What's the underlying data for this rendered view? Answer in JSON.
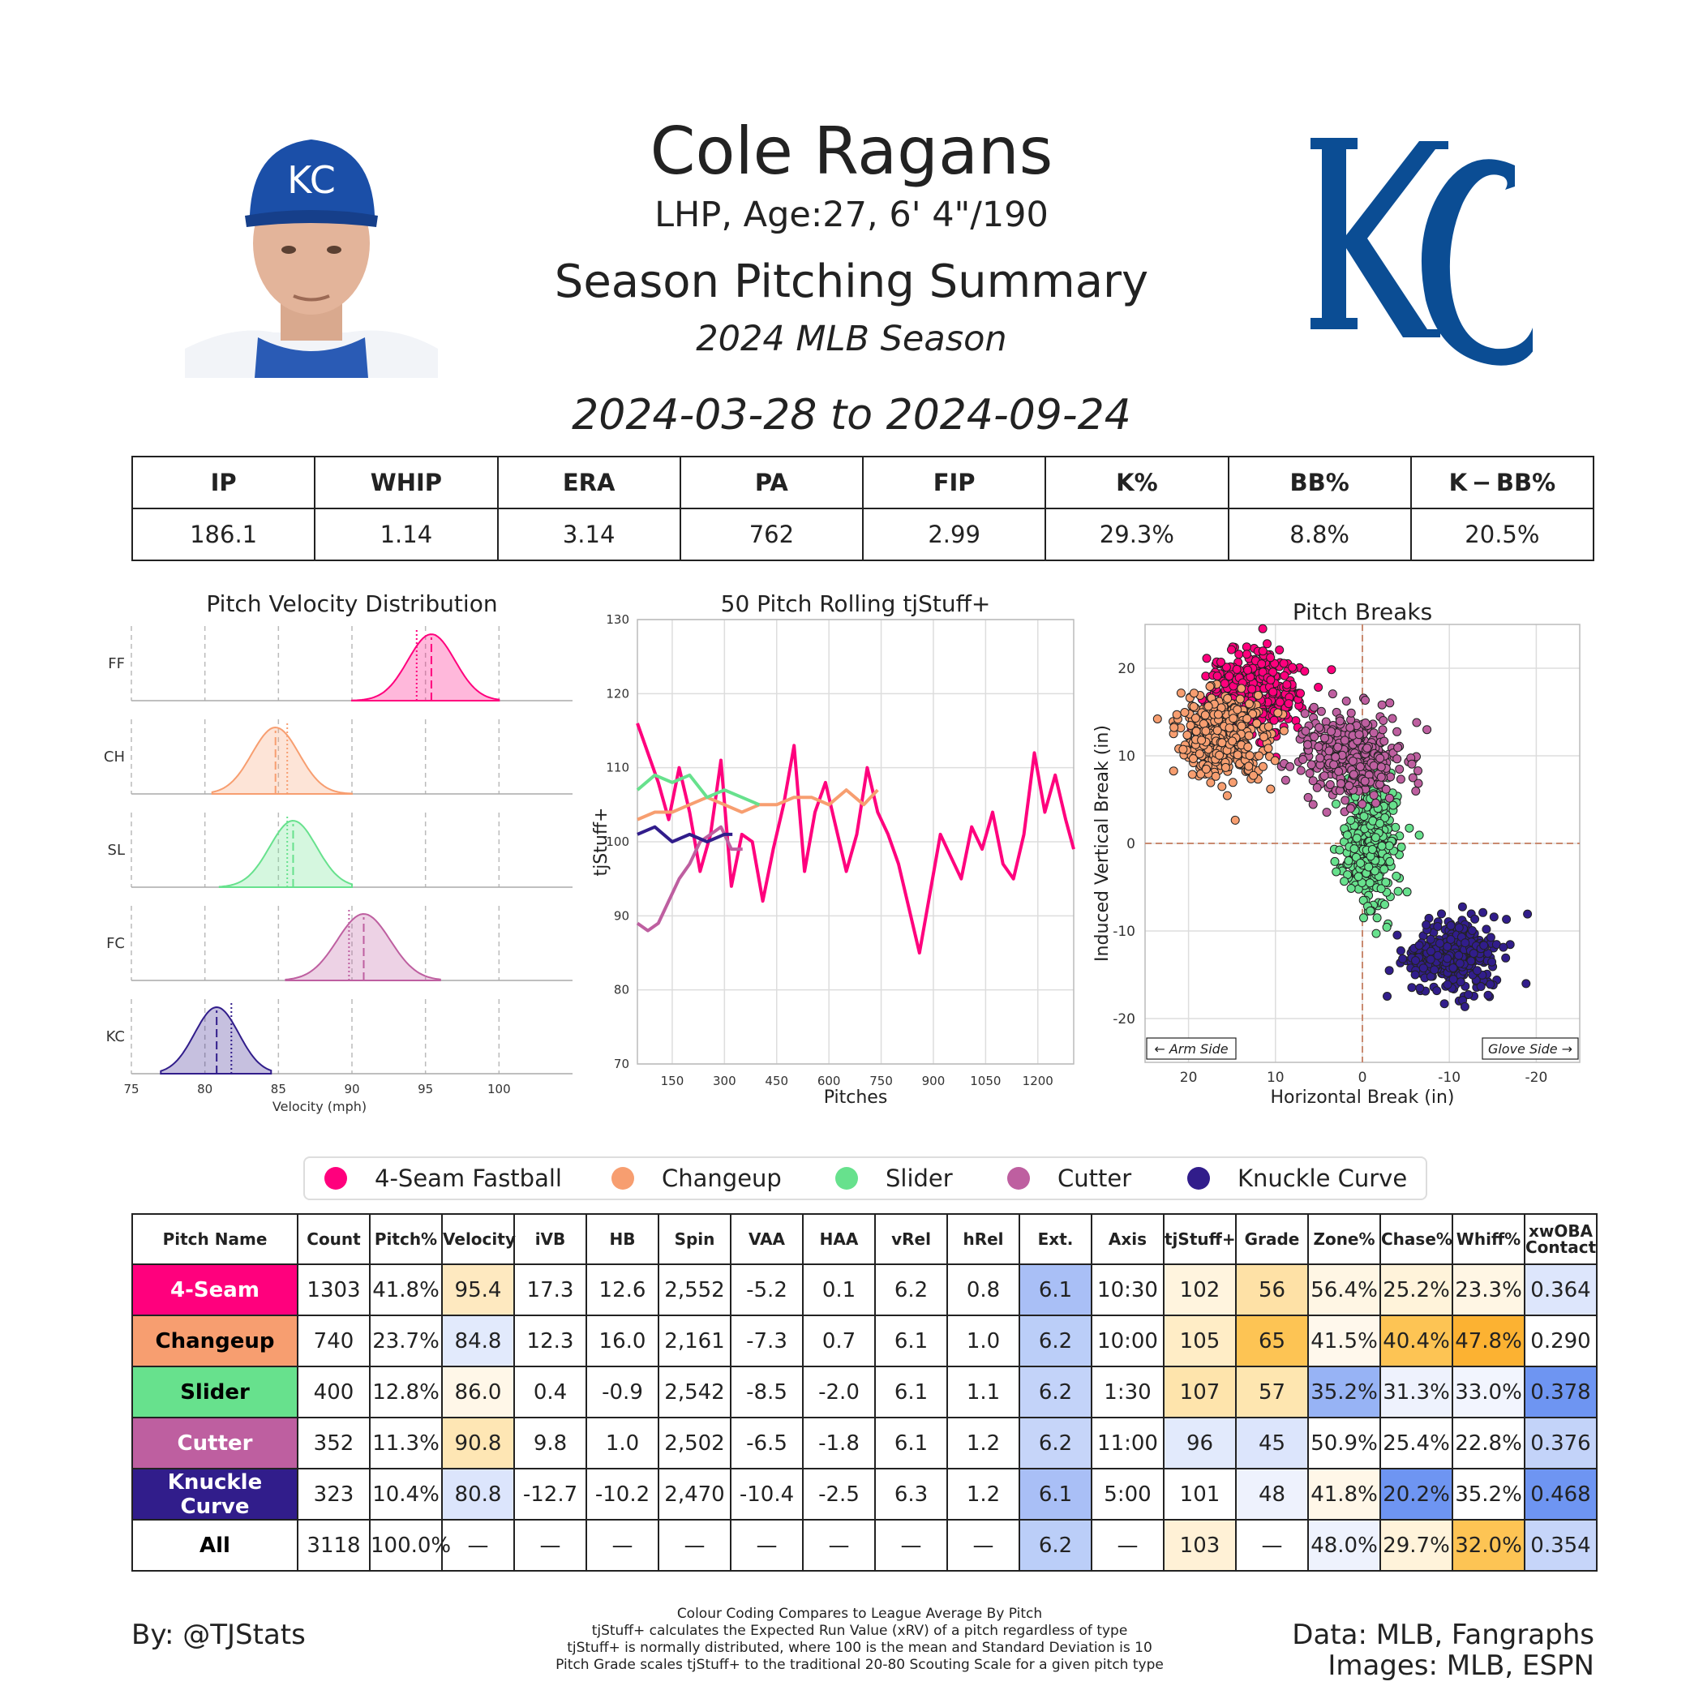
{
  "header": {
    "name": "Cole Ragans",
    "bio": "LHP, Age:27, 6' 4\"/190",
    "title": "Season Pitching Summary",
    "season": "2024 MLB Season",
    "dates": "2024-03-28 to 2024-09-24"
  },
  "stats": {
    "headers": [
      "IP",
      "WHIP",
      "ERA",
      "PA",
      "FIP",
      "K%",
      "BB%",
      "K − BB%"
    ],
    "values": [
      "186.1",
      "1.14",
      "3.14",
      "762",
      "2.99",
      "29.3%",
      "8.8%",
      "20.5%"
    ]
  },
  "legend": [
    {
      "label": "4-Seam Fastball",
      "color": "#FF007D"
    },
    {
      "label": "Changeup",
      "color": "#F79E70"
    },
    {
      "label": "Slider",
      "color": "#67E18D"
    },
    {
      "label": "Cutter",
      "color": "#BE5FA0"
    },
    {
      "label": "Knuckle Curve",
      "color": "#311D8B"
    }
  ],
  "table": {
    "headers": [
      "Pitch Name",
      "Count",
      "Pitch%",
      "Velocity",
      "iVB",
      "HB",
      "Spin",
      "VAA",
      "HAA",
      "vRel",
      "hRel",
      "Ext.",
      "Axis",
      "tjStuff+",
      "Grade",
      "Zone%",
      "Chase%",
      "Whiff%",
      "xwOBA Contact"
    ],
    "rows": [
      {
        "name": "4-Seam",
        "name_bg": "#FF007D",
        "name_color": "#ffffff",
        "cells": [
          "1303",
          "41.8%",
          "95.4",
          "17.3",
          "12.6",
          "2,552",
          "-5.2",
          "0.1",
          "6.2",
          "0.8",
          "6.1",
          "10:30",
          "102",
          "56",
          "56.4%",
          "25.2%",
          "23.3%",
          "0.364"
        ],
        "bg": [
          "",
          "",
          "#FEE9C0",
          "",
          "",
          "",
          "",
          "",
          "",
          "",
          "#A9BFF6",
          "",
          "#FFF4DE",
          "#FEE1A6",
          "#FFF6E4",
          "#FFF3DA",
          "#FFF6E4",
          "#DDE6FC"
        ]
      },
      {
        "name": "Changeup",
        "name_bg": "#F79E70",
        "name_color": "#000000",
        "cells": [
          "740",
          "23.7%",
          "84.8",
          "12.3",
          "16.0",
          "2,161",
          "-7.3",
          "0.7",
          "6.1",
          "1.0",
          "6.2",
          "10:00",
          "105",
          "65",
          "41.5%",
          "40.4%",
          "47.8%",
          "0.290"
        ],
        "bg": [
          "",
          "",
          "#E2EAFC",
          "",
          "",
          "",
          "",
          "",
          "",
          "",
          "#BBCEF8",
          "",
          "#FFEDC6",
          "#FDC454",
          "#FFF8EC",
          "#FDC454",
          "#FCB232",
          ""
        ]
      },
      {
        "name": "Slider",
        "name_bg": "#67E18D",
        "name_color": "#000000",
        "cells": [
          "400",
          "12.8%",
          "86.0",
          "0.4",
          "-0.9",
          "2,542",
          "-8.5",
          "-2.0",
          "6.1",
          "1.1",
          "6.2",
          "1:30",
          "107",
          "57",
          "35.2%",
          "31.3%",
          "33.0%",
          "0.378"
        ],
        "bg": [
          "",
          "",
          "#FFF7E8",
          "",
          "",
          "",
          "",
          "",
          "",
          "",
          "#C3D3F9",
          "",
          "#FEE4AC",
          "#FEE6B0",
          "#97B3F5",
          "#EEF2FD",
          "#F2F5FE",
          "#6E95F2"
        ]
      },
      {
        "name": "Cutter",
        "name_bg": "#BE5FA0",
        "name_color": "#ffffff",
        "cells": [
          "352",
          "11.3%",
          "90.8",
          "9.8",
          "1.0",
          "2,502",
          "-6.5",
          "-1.8",
          "6.1",
          "1.2",
          "6.2",
          "11:00",
          "96",
          "45",
          "50.9%",
          "25.4%",
          "22.8%",
          "0.376"
        ],
        "bg": [
          "",
          "",
          "#FEE6B4",
          "",
          "",
          "",
          "",
          "",
          "",
          "",
          "#C6D5F9",
          "",
          "#E2EAFC",
          "#DCE5FC",
          "",
          "",
          "",
          "#C3D3F9"
        ]
      },
      {
        "name": "Knuckle Curve",
        "name_bg": "#311D8B",
        "name_color": "#ffffff",
        "cells": [
          "323",
          "10.4%",
          "80.8",
          "-12.7",
          "-10.2",
          "2,470",
          "-10.4",
          "-2.5",
          "6.3",
          "1.2",
          "6.1",
          "5:00",
          "101",
          "48",
          "41.8%",
          "20.2%",
          "35.2%",
          "0.468"
        ],
        "bg": [
          "",
          "",
          "#DCE5FC",
          "",
          "",
          "",
          "",
          "",
          "",
          "",
          "#A9BFF6",
          "",
          "",
          "#EEF2FD",
          "#FFF7E8",
          "#6E95F2",
          "",
          "#6E95F2"
        ]
      },
      {
        "name": "All",
        "name_bg": "#ffffff",
        "name_color": "#000000",
        "cells": [
          "3118",
          "100.0%",
          "—",
          "—",
          "—",
          "—",
          "—",
          "—",
          "—",
          "—",
          "6.2",
          "—",
          "103",
          "—",
          "48.0%",
          "29.7%",
          "32.0%",
          "0.354"
        ],
        "bg": [
          "",
          "",
          "",
          "",
          "",
          "",
          "",
          "",
          "",
          "",
          "#BBCEF8",
          "",
          "#FFF1D6",
          "",
          "#EEF2FD",
          "#FFF3DA",
          "#FDC454",
          "#C6D5F9"
        ]
      }
    ]
  },
  "footer": {
    "by": "By: @TJStats",
    "data_credit": "Data: MLB, Fangraphs",
    "images_credit": "Images: MLB, ESPN",
    "notes": [
      "Colour Coding Compares to League Average By Pitch",
      "tjStuff+ calculates the Expected Run Value (xRV) of a pitch regardless of type",
      "tjStuff+ is normally distributed, where 100 is the mean and Standard Deviation is 10",
      "Pitch Grade scales tjStuff+ to the traditional 20-80 Scouting Scale for a given pitch type"
    ]
  },
  "chart_data": [
    {
      "type": "area",
      "title": "Pitch Velocity Distribution",
      "xlabel": "Velocity (mph)",
      "xlim": [
        75,
        105
      ],
      "xticks": [
        75,
        80,
        85,
        90,
        95,
        100
      ],
      "series": [
        {
          "name": "FF",
          "color": "#FF007D",
          "mean": 95.4,
          "sd": 1.6,
          "range": [
            90,
            100
          ],
          "league_avg": 94.4
        },
        {
          "name": "CH",
          "color": "#F79E70",
          "mean": 84.8,
          "sd": 1.6,
          "range": [
            80.5,
            90
          ],
          "league_avg": 85.6
        },
        {
          "name": "SL",
          "color": "#67E18D",
          "mean": 86.0,
          "sd": 1.6,
          "range": [
            81,
            90
          ],
          "league_avg": 85.6
        },
        {
          "name": "FC",
          "color": "#BE5FA0",
          "mean": 90.8,
          "sd": 1.8,
          "range": [
            85.5,
            96
          ],
          "league_avg": 89.8
        },
        {
          "name": "KC",
          "color": "#311D8B",
          "mean": 80.8,
          "sd": 1.5,
          "range": [
            77,
            84.5
          ],
          "league_avg": 81.8
        }
      ]
    },
    {
      "type": "line",
      "title": "50 Pitch Rolling tjStuff+",
      "xlabel": "Pitches",
      "ylabel": "tjStuff+",
      "xlim": [
        50,
        1303
      ],
      "ylim": [
        70,
        130
      ],
      "xticks": [
        150,
        300,
        450,
        600,
        750,
        900,
        1050,
        1200
      ],
      "yticks": [
        70,
        80,
        90,
        100,
        110,
        120,
        130
      ],
      "series": [
        {
          "name": "4-Seam Fastball",
          "color": "#FF007D",
          "x": [
            50,
            80,
            110,
            140,
            170,
            200,
            230,
            260,
            290,
            320,
            350,
            380,
            410,
            440,
            470,
            500,
            530,
            560,
            590,
            620,
            650,
            680,
            710,
            740,
            770,
            800,
            830,
            860,
            890,
            920,
            950,
            980,
            1010,
            1040,
            1070,
            1100,
            1130,
            1160,
            1190,
            1220,
            1250,
            1280,
            1303
          ],
          "y": [
            116,
            112,
            108,
            103,
            110,
            104,
            96,
            101,
            111,
            94,
            101,
            100,
            92,
            99,
            105,
            113,
            96,
            104,
            108,
            102,
            96,
            101,
            110,
            104,
            101,
            97,
            91,
            85,
            93,
            101,
            98,
            95,
            102,
            99,
            104,
            97,
            95,
            101,
            112,
            104,
            109,
            103,
            99
          ]
        },
        {
          "name": "Changeup",
          "color": "#F79E70",
          "x": [
            50,
            100,
            150,
            200,
            250,
            300,
            350,
            400,
            450,
            500,
            550,
            600,
            650,
            700,
            740
          ],
          "y": [
            103,
            104,
            104,
            105,
            106,
            105,
            104,
            105,
            105,
            106,
            106,
            105,
            107,
            105,
            107
          ]
        },
        {
          "name": "Slider",
          "color": "#67E18D",
          "x": [
            50,
            100,
            150,
            200,
            250,
            300,
            350,
            400
          ],
          "y": [
            107,
            109,
            108,
            109,
            106,
            107,
            106,
            105
          ]
        },
        {
          "name": "Cutter",
          "color": "#BE5FA0",
          "x": [
            50,
            80,
            110,
            140,
            170,
            200,
            230,
            260,
            290,
            320,
            352
          ],
          "y": [
            89,
            88,
            89,
            92,
            95,
            97,
            100,
            101,
            102,
            99,
            99
          ]
        },
        {
          "name": "Knuckle Curve",
          "color": "#311D8B",
          "x": [
            50,
            100,
            150,
            200,
            250,
            300,
            323
          ],
          "y": [
            101,
            102,
            100,
            101,
            100,
            101,
            101
          ]
        }
      ]
    },
    {
      "type": "scatter",
      "title": "Pitch Breaks",
      "xlabel": "Horizontal Break (in)",
      "ylabel": "Induced Vertical Break (in)",
      "xlim": [
        25,
        -25
      ],
      "ylim": [
        -25,
        25
      ],
      "xticks": [
        20,
        10,
        0,
        -10,
        -20
      ],
      "yticks": [
        -20,
        -10,
        0,
        10,
        20
      ],
      "annotations": [
        "← Arm Side",
        "Glove Side →"
      ],
      "series": [
        {
          "name": "4-Seam Fastball",
          "color": "#FF007D",
          "hb_mean": 12.6,
          "ivb_mean": 17.3,
          "hb_sd": 2.6,
          "ivb_sd": 2.2,
          "n": 1303
        },
        {
          "name": "Changeup",
          "color": "#F79E70",
          "hb_mean": 16.0,
          "ivb_mean": 12.3,
          "hb_sd": 2.4,
          "ivb_sd": 2.4,
          "n": 740
        },
        {
          "name": "Slider",
          "color": "#67E18D",
          "hb_mean": -0.9,
          "ivb_mean": 0.4,
          "hb_sd": 1.5,
          "ivb_sd": 3.4,
          "n": 400
        },
        {
          "name": "Cutter",
          "color": "#BE5FA0",
          "hb_mean": 1.0,
          "ivb_mean": 9.8,
          "hb_sd": 2.8,
          "ivb_sd": 2.5,
          "n": 352
        },
        {
          "name": "Knuckle Curve",
          "color": "#311D8B",
          "hb_mean": -10.2,
          "ivb_mean": -12.7,
          "hb_sd": 2.6,
          "ivb_sd": 2.2,
          "n": 323
        }
      ]
    }
  ]
}
